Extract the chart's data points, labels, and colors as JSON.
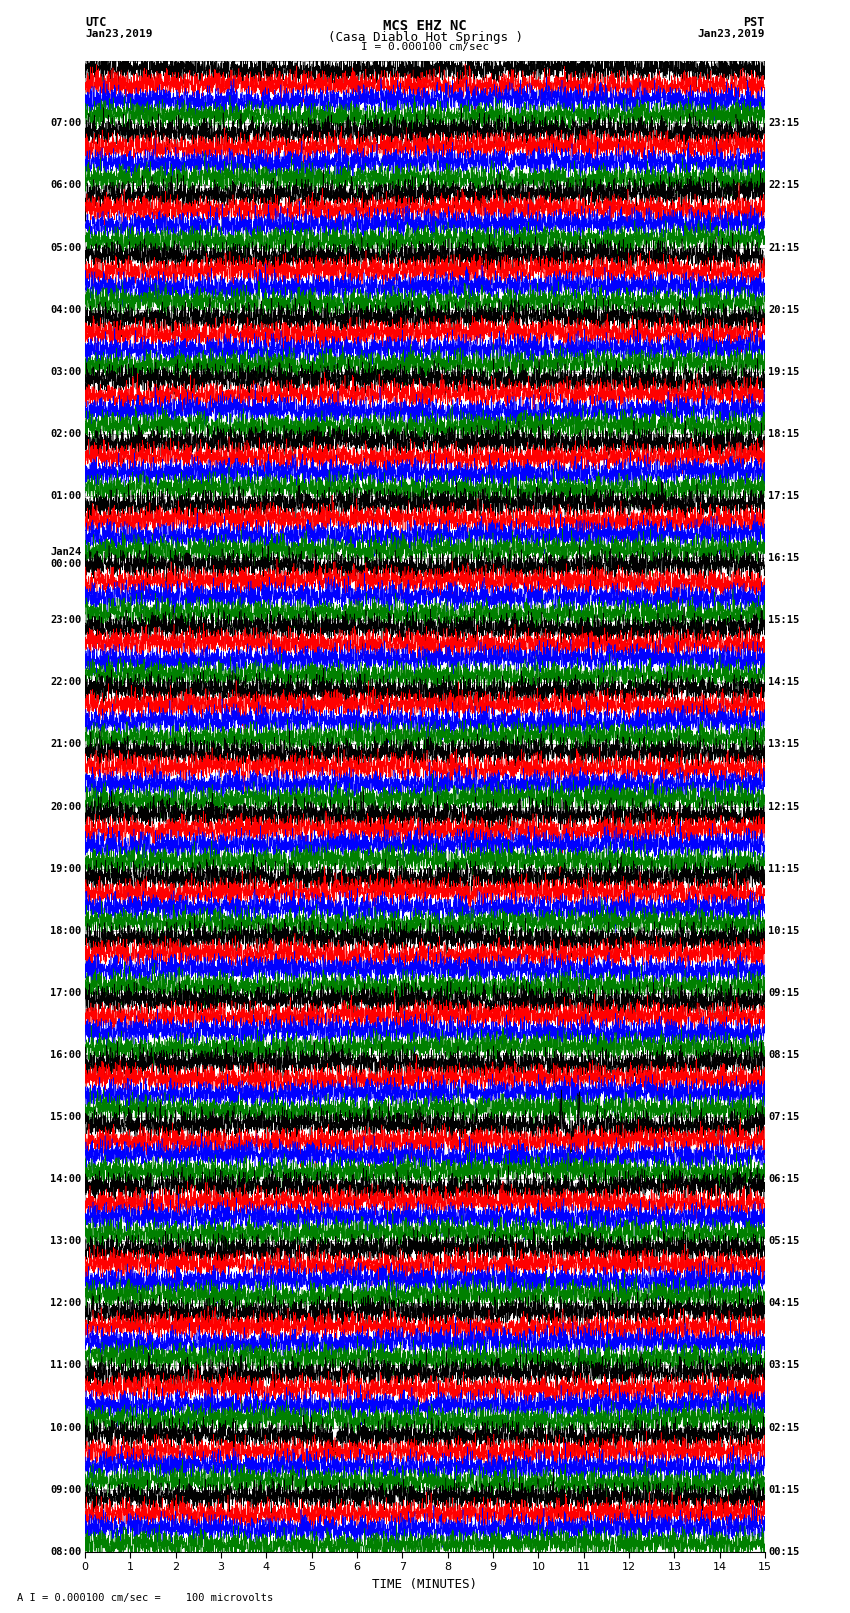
{
  "title_line1": "MCS EHZ NC",
  "title_line2": "(Casa Diablo Hot Springs )",
  "scale_label": "I = 0.000100 cm/sec",
  "bottom_label": "A I = 0.000100 cm/sec =    100 microvolts",
  "xlabel": "TIME (MINUTES)",
  "utc_label": "UTC",
  "utc_date": "Jan23,2019",
  "pst_label": "PST",
  "pst_date": "Jan23,2019",
  "left_times_utc": [
    "08:00",
    "09:00",
    "10:00",
    "11:00",
    "12:00",
    "13:00",
    "14:00",
    "15:00",
    "16:00",
    "17:00",
    "18:00",
    "19:00",
    "20:00",
    "21:00",
    "22:00",
    "23:00",
    "Jan24\n00:00",
    "01:00",
    "02:00",
    "03:00",
    "04:00",
    "05:00",
    "06:00",
    "07:00"
  ],
  "right_times_pst": [
    "00:15",
    "01:15",
    "02:15",
    "03:15",
    "04:15",
    "05:15",
    "06:15",
    "07:15",
    "08:15",
    "09:15",
    "10:15",
    "11:15",
    "12:15",
    "13:15",
    "14:15",
    "15:15",
    "16:15",
    "17:15",
    "18:15",
    "19:15",
    "20:15",
    "21:15",
    "22:15",
    "23:15"
  ],
  "n_rows": 24,
  "traces_per_row": 4,
  "colors": [
    "black",
    "red",
    "blue",
    "green"
  ],
  "xmin": 0,
  "xmax": 15,
  "bg_color": "white",
  "grid_color": "#888888",
  "grid_linewidth": 0.5,
  "trace_linewidth": 0.4,
  "n_samples": 4500
}
